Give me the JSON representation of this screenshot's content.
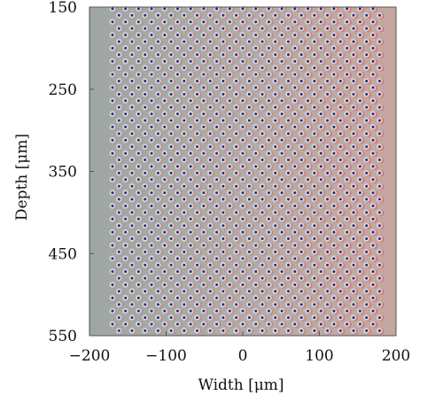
{
  "chart_data": {
    "type": "scatter",
    "xlabel": "Width [μm]",
    "ylabel": "Depth [μm]",
    "xlim": [
      -200,
      200
    ],
    "ylim": [
      550,
      150
    ],
    "y_inverted": true,
    "xticks": [
      -200,
      -100,
      0,
      100,
      200
    ],
    "xtick_labels": [
      "−200",
      "−100",
      "0",
      "100",
      "200"
    ],
    "yticks": [
      150,
      250,
      350,
      450,
      550
    ],
    "ytick_labels": [
      "150",
      "250",
      "350",
      "450",
      "550"
    ],
    "pattern": {
      "description_of_points": "regular staggered lattice of holes",
      "x_start": -170,
      "x_end": 185,
      "x_step": 17,
      "y_start": 152,
      "y_end": 548,
      "y_step": 8,
      "odd_row_x_offset": 8.5
    },
    "colors": {
      "image_background": "#a7aca9",
      "hole_center": "#1a2a8c",
      "hole_glow": "#f4f6f4",
      "red_fringe": "#d9655a",
      "frame": "#555555"
    },
    "grid": false
  }
}
